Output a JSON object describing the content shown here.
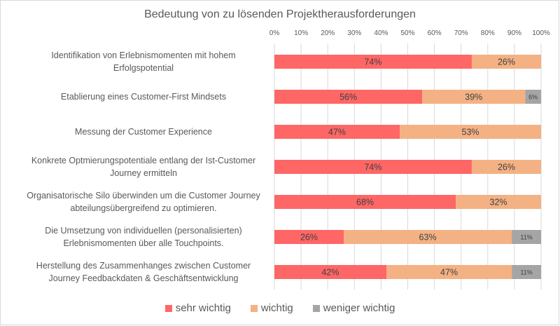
{
  "chart_data": {
    "type": "bar",
    "orientation": "horizontal",
    "stacked": "100%",
    "title": "Bedeutung von zu lösenden Projektherausforderungen",
    "xlabel": "",
    "ylabel": "",
    "xlim": [
      0,
      100
    ],
    "x_ticks": [
      "0%",
      "10%",
      "20%",
      "30%",
      "40%",
      "50%",
      "60%",
      "70%",
      "80%",
      "90%",
      "100%"
    ],
    "x_axis_position": "top",
    "grid": true,
    "legend_position": "bottom",
    "categories": [
      [
        "Identifikation von Erlebnismomenten mit hohem",
        "Erfolgspotential"
      ],
      [
        "Etablierung eines Customer-First Mindsets"
      ],
      [
        "Messung der Customer Experience"
      ],
      [
        "Konkrete Optmierungspotentiale entlang der Ist-Customer",
        "Journey ermitteln"
      ],
      [
        "Organisatorische Silo überwinden um die Customer Journey",
        "abteilungsübergreifend zu optimieren."
      ],
      [
        "Die Umsetzung von individuellen (personalisierten)",
        "Erlebnismomenten über alle Touchpoints."
      ],
      [
        "Herstellung des Zusammenhanges zwischen Customer",
        "Journey Feedbackdaten & Geschäftsentwicklung"
      ]
    ],
    "series": [
      {
        "name": "sehr wichtig",
        "color": "#FF6666",
        "values": [
          74,
          56,
          47,
          74,
          68,
          26,
          42
        ],
        "labels": [
          "74%",
          "56%",
          "47%",
          "74%",
          "68%",
          "26%",
          "42%"
        ]
      },
      {
        "name": "wichtig",
        "color": "#F4B183",
        "values": [
          26,
          39,
          53,
          26,
          32,
          63,
          47
        ],
        "labels": [
          "26%",
          "39%",
          "53%",
          "26%",
          "32%",
          "63%",
          "47%"
        ]
      },
      {
        "name": "weniger wichtig",
        "color": "#A5A5A5",
        "values": [
          0,
          6,
          0,
          0,
          0,
          11,
          11
        ],
        "labels": [
          "",
          "6%",
          "",
          "",
          "",
          "11%",
          "11%"
        ]
      }
    ]
  }
}
